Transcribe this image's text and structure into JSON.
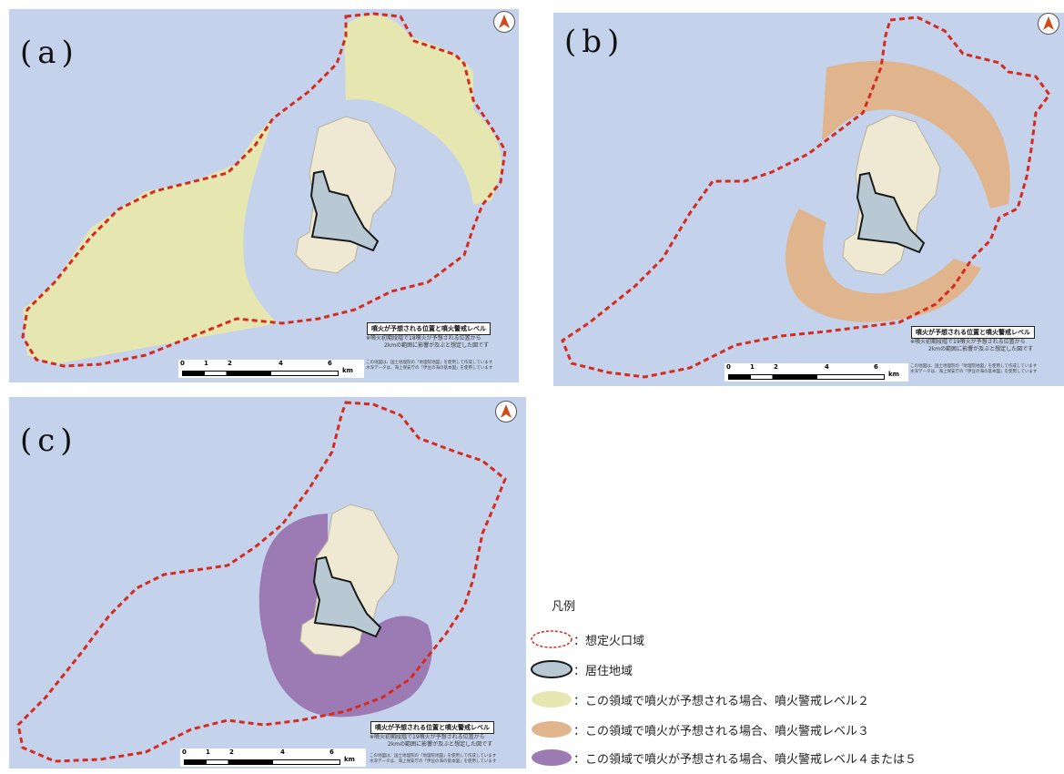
{
  "panels": [
    {
      "id": "a",
      "label": "(a)",
      "zone_color": "#e6e6b1",
      "map_title": "噴火が予想される位置と噴火警戒レベル",
      "note_line1": "※噴火初期段階で18噴火が予想される位置から",
      "note_line2": "2kmの範囲に影響が及ぶと想定した図です",
      "credit_line1": "この地図は、国土地理院の「地理院地図」を使用して作成しています",
      "credit_line2": "水深データは、海上保安庁の「伊豆の海の基本図」を使用しています"
    },
    {
      "id": "b",
      "label": "(b)",
      "zone_color": "#e0b58e",
      "map_title": "噴火が予想される位置と噴火警戒レベル",
      "note_line1": "※噴火初期段階で19噴火が予想される位置から",
      "note_line2": "2kmの範囲に影響が及ぶと想定した図です",
      "credit_line1": "この地図は、国土地理院の「地理院地図」を使用して作成しています",
      "credit_line2": "水深データは、海上保安庁の「伊豆の海の基本図」を使用しています"
    },
    {
      "id": "c",
      "label": "(c)",
      "zone_color": "#9c7bb4",
      "map_title": "噴火が予想される位置と噴火警戒レベル",
      "note_line1": "※噴火初期段階で19噴火が予想される位置から",
      "note_line2": "2kmの範囲に影響が及ぶと想定した図です",
      "credit_line1": "この地図は、国土地理院の「地理院地図」を使用して作成しています",
      "credit_line2": "水深データは、海上保安庁の「伊豆の海の基本図」を使用しています"
    }
  ],
  "scale": {
    "ticks": [
      "0",
      "1",
      "2",
      "4",
      "6"
    ],
    "unit": "km"
  },
  "legend": {
    "title": "凡例",
    "items": [
      {
        "symbol": "dashed-red-outline",
        "label": "：想定火口域",
        "color": "#d62a1f"
      },
      {
        "symbol": "blue-grey-fill",
        "label": "：居住地域",
        "color": "#b8c9d3"
      },
      {
        "symbol": "yellow-fill",
        "label": "：この領域で噴火が予想される場合、噴火警戒レベル２",
        "color": "#e6e6b1"
      },
      {
        "symbol": "orange-fill",
        "label": "：この領域で噴火が予想される場合、噴火警戒レベル３",
        "color": "#e0b58e"
      },
      {
        "symbol": "purple-fill",
        "label": "：この領域で噴火が予想される場合、噴火警戒レベル４または５",
        "color": "#9c7bb4"
      }
    ]
  },
  "colors": {
    "sea": "#c4d3eb",
    "land": "#efe9d4",
    "crater_outline": "#d62a1f",
    "residential": "#b8c9d3"
  }
}
